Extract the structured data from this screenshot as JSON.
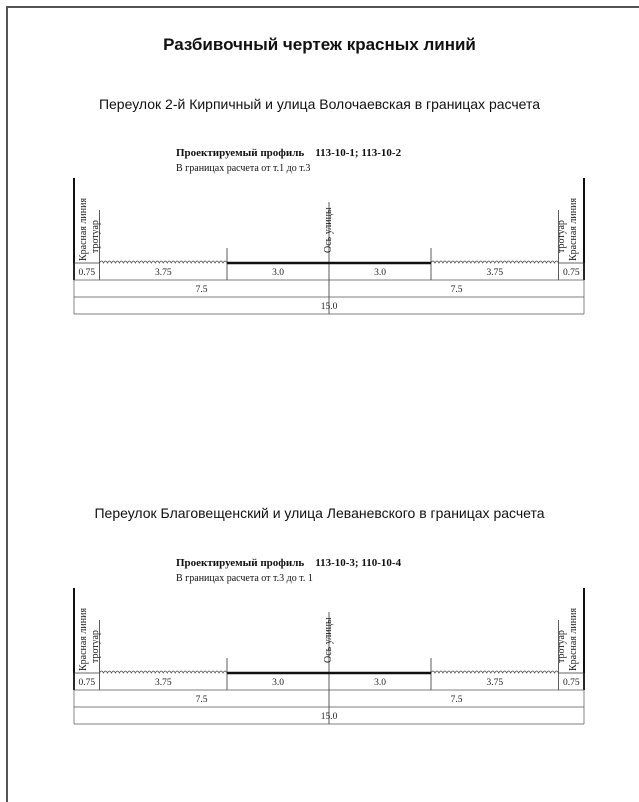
{
  "document": {
    "title": "Разбивочный чертеж красных линий"
  },
  "sections": [
    {
      "street_title": "Переулок 2-й Кирпичный и улица  Волочаевская в границах расчета",
      "profile_title": "Проектируемый профиль    113-10-1; 113-10-2",
      "profile_subtitle": "В границах расчета от т.1 до т.3"
    },
    {
      "street_title": "Переулок Благовещенский и улица Леваневского в границах расчета",
      "profile_title": "Проектируемый профиль    113-10-3; 110-10-4",
      "profile_subtitle": "В границах расчета от т.3 до т. 1"
    }
  ],
  "profile": {
    "labels": {
      "red_line": "Красная линия",
      "sidewalk": "тротуар",
      "axis": "Ось улицы"
    },
    "segments": [
      {
        "label": "0.75",
        "width": 0.75,
        "kind": "edge"
      },
      {
        "label": "3.75",
        "width": 3.75,
        "kind": "green"
      },
      {
        "label": "3.0",
        "width": 3.0,
        "kind": "road"
      },
      {
        "label": "3.0",
        "width": 3.0,
        "kind": "road"
      },
      {
        "label": "3.75",
        "width": 3.75,
        "kind": "green"
      },
      {
        "label": "0.75",
        "width": 0.75,
        "kind": "edge"
      }
    ],
    "halves": [
      {
        "label": "7.5",
        "width": 7.5
      },
      {
        "label": "7.5",
        "width": 7.5
      }
    ],
    "total": {
      "label": "15.0",
      "width": 15.0
    }
  }
}
